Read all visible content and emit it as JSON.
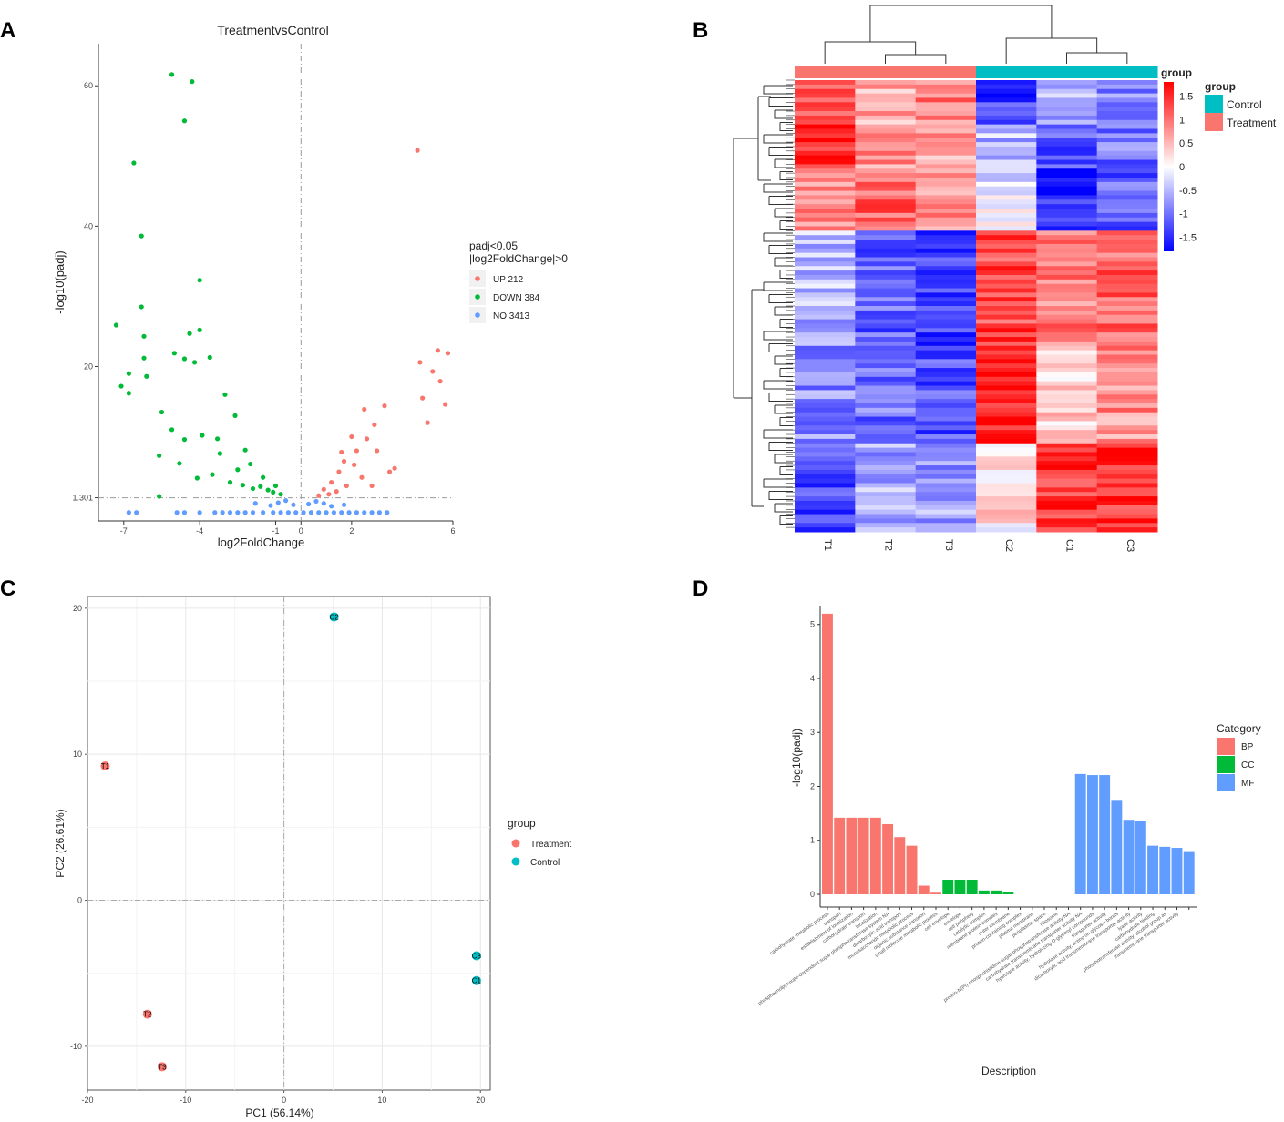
{
  "panels": {
    "a": "A",
    "b": "B",
    "c": "C",
    "d": "D"
  },
  "colors": {
    "up": "#F8766D",
    "down": "#00BA38",
    "no": "#619CFF",
    "treatment": "#F8766D",
    "control": "#00BFC4",
    "heat_high": "#FF0000",
    "heat_mid": "#FFFFFF",
    "heat_low": "#0000FF"
  },
  "chart_data": [
    {
      "id": "volcano",
      "type": "scatter",
      "title": "TreatmentvsControl",
      "xlabel": "log2FoldChange",
      "ylabel": "-log10(padj)",
      "xlim": [
        -8,
        6
      ],
      "ylim": [
        -2,
        66
      ],
      "xticks": [
        -7,
        -4,
        -1,
        0,
        2,
        6
      ],
      "xtick_labels": [
        "-7",
        "-4",
        "-1",
        "0",
        "2",
        "6"
      ],
      "yticks": [
        1.301,
        20,
        40,
        60
      ],
      "ytick_labels": [
        "1.301",
        "20",
        "40",
        "60"
      ],
      "threshold_y": 1.301,
      "threshold_x": 0,
      "legend_title": [
        "padj<0.05",
        "|log2FoldChange|>0"
      ],
      "legend": [
        {
          "key": "UP",
          "label": "UP 212"
        },
        {
          "key": "DOWN",
          "label": "DOWN 384"
        },
        {
          "key": "NO",
          "label": "NO 3413"
        }
      ],
      "series": [
        {
          "name": "UP",
          "points": [
            [
              4.6,
              50.8
            ],
            [
              5.4,
              22.3
            ],
            [
              5.8,
              21.9
            ],
            [
              5.2,
              19.3
            ],
            [
              4.7,
              20.6
            ],
            [
              5.5,
              17.9
            ],
            [
              4.8,
              15.5
            ],
            [
              5.7,
              14.6
            ],
            [
              5.0,
              12.0
            ],
            [
              3.3,
              14.4
            ],
            [
              2.5,
              13.9
            ],
            [
              2.9,
              11.7
            ],
            [
              2.6,
              9.7
            ],
            [
              3.0,
              8.0
            ],
            [
              3.7,
              5.5
            ],
            [
              3.5,
              5.0
            ],
            [
              2.0,
              10.0
            ],
            [
              2.2,
              8.0
            ],
            [
              1.7,
              6.5
            ],
            [
              1.5,
              5.0
            ],
            [
              1.2,
              3.5
            ],
            [
              0.9,
              2.5
            ],
            [
              2.4,
              4.2
            ],
            [
              1.8,
              3.0
            ],
            [
              2.8,
              3.0
            ],
            [
              1.1,
              1.8
            ],
            [
              0.7,
              1.6
            ],
            [
              1.4,
              2.2
            ],
            [
              2.1,
              6.0
            ],
            [
              1.6,
              7.8
            ]
          ]
        },
        {
          "name": "DOWN",
          "points": [
            [
              -5.1,
              61.6
            ],
            [
              -4.3,
              60.6
            ],
            [
              -4.6,
              55.0
            ],
            [
              -6.6,
              49.0
            ],
            [
              -6.3,
              38.6
            ],
            [
              -4.0,
              32.3
            ],
            [
              -6.3,
              28.5
            ],
            [
              -7.3,
              25.9
            ],
            [
              -6.2,
              24.3
            ],
            [
              -4.4,
              24.7
            ],
            [
              -4.0,
              25.2
            ],
            [
              -6.2,
              21.2
            ],
            [
              -6.1,
              18.6
            ],
            [
              -6.8,
              19.0
            ],
            [
              -7.1,
              17.2
            ],
            [
              -6.8,
              16.2
            ],
            [
              -5.0,
              21.9
            ],
            [
              -4.6,
              21.1
            ],
            [
              -4.2,
              20.6
            ],
            [
              -3.6,
              21.3
            ],
            [
              -3.0,
              16.0
            ],
            [
              -2.6,
              13.0
            ],
            [
              -5.5,
              13.5
            ],
            [
              -5.1,
              11.0
            ],
            [
              -4.6,
              9.6
            ],
            [
              -3.9,
              10.2
            ],
            [
              -3.3,
              9.7
            ],
            [
              -2.2,
              8.1
            ],
            [
              -2.0,
              6.1
            ],
            [
              -5.6,
              7.3
            ],
            [
              -4.8,
              6.2
            ],
            [
              -4.1,
              4.1
            ],
            [
              -3.5,
              4.6
            ],
            [
              -2.8,
              3.5
            ],
            [
              -2.3,
              3.1
            ],
            [
              -1.9,
              2.6
            ],
            [
              -1.6,
              2.9
            ],
            [
              -1.3,
              2.4
            ],
            [
              -1.1,
              2.1
            ],
            [
              -0.8,
              1.8
            ],
            [
              -1.5,
              4.2
            ],
            [
              -1.0,
              3.0
            ],
            [
              -5.6,
              1.5
            ],
            [
              -3.2,
              7.6
            ],
            [
              -2.5,
              5.3
            ]
          ]
        },
        {
          "name": "NO",
          "points": [
            [
              -6.8,
              -0.8
            ],
            [
              -6.5,
              -0.8
            ],
            [
              -4.9,
              -0.8
            ],
            [
              -4.6,
              -0.8
            ],
            [
              -4.0,
              -0.8
            ],
            [
              -3.4,
              -0.8
            ],
            [
              -3.1,
              -0.8
            ],
            [
              -2.8,
              -0.8
            ],
            [
              -2.5,
              -0.8
            ],
            [
              -2.2,
              -0.8
            ],
            [
              -1.9,
              -0.8
            ],
            [
              -1.5,
              -0.8
            ],
            [
              -1.1,
              -0.8
            ],
            [
              -0.8,
              -0.8
            ],
            [
              -0.5,
              -0.8
            ],
            [
              -0.2,
              -0.8
            ],
            [
              0.1,
              -0.8
            ],
            [
              0.4,
              -0.8
            ],
            [
              0.7,
              -0.8
            ],
            [
              1.0,
              -0.8
            ],
            [
              1.3,
              -0.8
            ],
            [
              1.6,
              -0.8
            ],
            [
              1.9,
              -0.8
            ],
            [
              2.2,
              -0.8
            ],
            [
              2.5,
              -0.8
            ],
            [
              2.8,
              -0.8
            ],
            [
              3.1,
              -0.8
            ],
            [
              3.4,
              -0.8
            ],
            [
              -1.2,
              0.2
            ],
            [
              -0.9,
              0.6
            ],
            [
              -0.6,
              0.9
            ],
            [
              -0.3,
              0.3
            ],
            [
              0.3,
              0.4
            ],
            [
              0.6,
              0.8
            ],
            [
              0.9,
              0.5
            ],
            [
              1.2,
              0.1
            ],
            [
              -1.8,
              0.5
            ],
            [
              1.7,
              0.3
            ]
          ]
        }
      ]
    },
    {
      "id": "heatmap",
      "type": "heatmap",
      "columns": [
        "T1",
        "T2",
        "T3",
        "C2",
        "C1",
        "C3"
      ],
      "column_groups": [
        "Treatment",
        "Treatment",
        "Treatment",
        "Control",
        "Control",
        "Control"
      ],
      "group_bar_label": "group",
      "legend_title": "group",
      "legend": [
        {
          "key": "Control",
          "label": "Control"
        },
        {
          "key": "Treatment",
          "label": "Treatment"
        }
      ],
      "scale_ticks": [
        "1.5",
        "1",
        "0.5",
        "0",
        "-0.5",
        "-1",
        "-1.5"
      ],
      "scale_range": [
        -1.8,
        1.8
      ],
      "row_blocks": [
        {
          "rows": 10,
          "values": [
            1.3,
            0.6,
            0.9,
            -1.4,
            -0.6,
            -0.9
          ]
        },
        {
          "rows": 10,
          "values": [
            1.6,
            0.8,
            0.7,
            -0.5,
            -1.2,
            -1.0
          ]
        },
        {
          "rows": 14,
          "values": [
            0.9,
            1.1,
            0.7,
            -0.2,
            -1.5,
            -1.1
          ]
        },
        {
          "rows": 26,
          "values": [
            -0.5,
            -1.1,
            -1.3,
            1.3,
            0.9,
            1.1
          ]
        },
        {
          "rows": 22,
          "values": [
            -0.8,
            -1.0,
            -1.2,
            1.6,
            0.4,
            0.8
          ]
        },
        {
          "rows": 20,
          "values": [
            -1.3,
            -0.6,
            -0.7,
            0.2,
            1.4,
            1.5
          ]
        }
      ]
    },
    {
      "id": "pca",
      "type": "scatter",
      "xlabel": "PC1 (56.14%)",
      "ylabel": "PC2 (26.61%)",
      "xlim": [
        -20,
        21
      ],
      "ylim": [
        -13,
        20.8
      ],
      "xticks": [
        -20,
        -10,
        0,
        10,
        20
      ],
      "xtick_labels": [
        "-20",
        "-10",
        "0",
        "10",
        "20"
      ],
      "yticks": [
        -10,
        0,
        10,
        20
      ],
      "ytick_labels": [
        "-10",
        "0",
        "10",
        "20"
      ],
      "legend_title": "group",
      "legend": [
        {
          "key": "Treatment",
          "label": "Treatment"
        },
        {
          "key": "Control",
          "label": "Control"
        }
      ],
      "points": [
        {
          "label": "T1",
          "group": "Treatment",
          "x": -18.2,
          "y": 9.2
        },
        {
          "label": "T2",
          "group": "Treatment",
          "x": -13.9,
          "y": -7.8
        },
        {
          "label": "T3",
          "group": "Treatment",
          "x": -12.4,
          "y": -11.4
        },
        {
          "label": "C2",
          "group": "Control",
          "x": 5.1,
          "y": 19.4
        },
        {
          "label": "C3",
          "group": "Control",
          "x": 19.6,
          "y": -3.8
        },
        {
          "label": "C1",
          "group": "Control",
          "x": 19.6,
          "y": -5.5
        }
      ]
    },
    {
      "id": "go_enrichment",
      "type": "bar",
      "xlabel": "Description",
      "ylabel": "-log10(padj)",
      "ylim": [
        0,
        5.35
      ],
      "yticks": [
        0,
        1,
        2,
        3,
        4,
        5
      ],
      "ytick_labels": [
        "0",
        "1",
        "2",
        "3",
        "4",
        "5"
      ],
      "legend_title": "Category",
      "legend": [
        {
          "key": "BP",
          "label": "BP"
        },
        {
          "key": "CC",
          "label": "CC"
        },
        {
          "key": "MF",
          "label": "MF"
        }
      ],
      "bars": [
        {
          "category": "carbohydrate metabolic process",
          "group": "BP",
          "value": 5.2
        },
        {
          "category": "transport",
          "group": "BP",
          "value": 1.42
        },
        {
          "category": "establishment of localization",
          "group": "BP",
          "value": 1.42
        },
        {
          "category": "carbohydrate transport",
          "group": "BP",
          "value": 1.42
        },
        {
          "category": "localization",
          "group": "BP",
          "value": 1.42
        },
        {
          "category": "phosphoenolpyruvate-dependent sugar phosphotransferase system NA",
          "group": "BP",
          "value": 1.3
        },
        {
          "category": "dicarboxylic acid transport",
          "group": "BP",
          "value": 1.06
        },
        {
          "category": "monosaccharide metabolic process",
          "group": "BP",
          "value": 0.9
        },
        {
          "category": "organic substance transport",
          "group": "BP",
          "value": 0.16
        },
        {
          "category": "small molecule metabolic process",
          "group": "BP",
          "value": 0.03
        },
        {
          "category": "cell envelope",
          "group": "CC",
          "value": 0.27
        },
        {
          "category": "envelope",
          "group": "CC",
          "value": 0.27
        },
        {
          "category": "cell periphery",
          "group": "CC",
          "value": 0.27
        },
        {
          "category": "catalytic complex",
          "group": "CC",
          "value": 0.07
        },
        {
          "category": "membrane protein complex",
          "group": "CC",
          "value": 0.07
        },
        {
          "category": "outer membrane",
          "group": "CC",
          "value": 0.04
        },
        {
          "category": "protein-containing complex",
          "group": "CC",
          "value": 0.0
        },
        {
          "category": "plasma membrane",
          "group": "CC",
          "value": 0.0
        },
        {
          "category": "periplasmic space",
          "group": "CC",
          "value": 0.0
        },
        {
          "category": "ribosome",
          "group": "CC",
          "value": 0.0
        },
        {
          "category": "protein-N(PI)-phosphohistidine-sugar phosphotransferase activity NA",
          "group": "MF",
          "value": 0.0
        },
        {
          "category": "carbohydrate transmembrane transporter activity NA",
          "group": "MF",
          "value": 2.23
        },
        {
          "category": "hydrolase activity, hydrolyzing O-glycosyl compounds",
          "group": "MF",
          "value": 2.21
        },
        {
          "category": "transporter activity",
          "group": "MF",
          "value": 2.21
        },
        {
          "category": "hydrolase activity, acting on glycosyl bonds",
          "group": "MF",
          "value": 1.75
        },
        {
          "category": "dicarboxylic acid transmembrane transporter activity",
          "group": "MF",
          "value": 1.38
        },
        {
          "category": "lyase activity",
          "group": "MF",
          "value": 1.35
        },
        {
          "category": "carbohydrate binding",
          "group": "MF",
          "value": 0.9
        },
        {
          "category": "phosphotransferase activity, alcohol group as",
          "group": "MF",
          "value": 0.88
        },
        {
          "category": "transmembrane transporter activity",
          "group": "MF",
          "value": 0.86
        },
        {
          "category": "",
          "group": "MF",
          "value": 0.8
        }
      ]
    }
  ]
}
